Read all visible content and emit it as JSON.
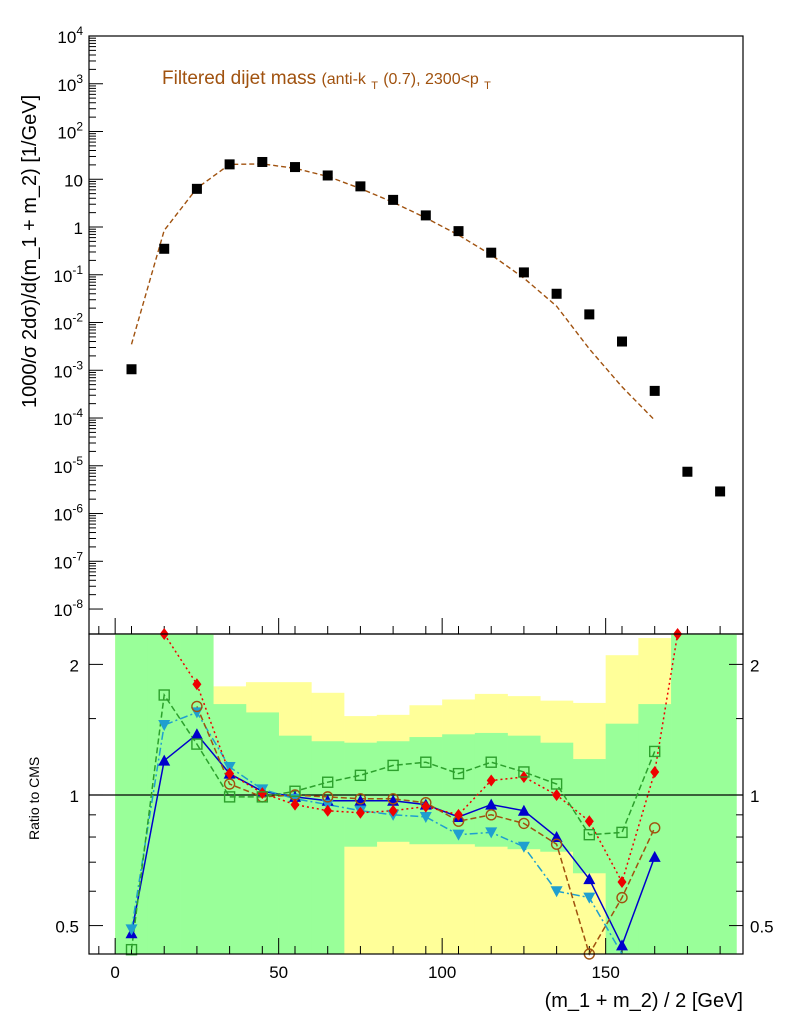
{
  "figure": {
    "title_main": "Filtered dijet mass",
    "title_detail_prefix": "(anti-k",
    "title_detail_sub": "T",
    "title_detail_mid": "(0.7), 2300<p",
    "title_detail_sub2": "T",
    "title_color": "#a0520f"
  },
  "chart_data": [
    {
      "type": "scatter",
      "panel": "top",
      "ylabel": "1000/σ 2dσ)/d(m_1 + m_2) [1/GeV]",
      "yscale": "log",
      "ylim": [
        3e-09,
        10000
      ],
      "xlim": [
        -8,
        192
      ],
      "y_tick_exponents": [
        4,
        3,
        2,
        1,
        0,
        -1,
        -2,
        -3,
        -4,
        -5,
        -6,
        -7,
        -8
      ],
      "y_tick_labels": [
        "10^4",
        "10^3",
        "10^2",
        "10",
        "1",
        "10^-1",
        "10^-2",
        "10^-3",
        "10^-4",
        "10^-5",
        "10^-6",
        "10^-7",
        "10^-8"
      ],
      "series": [
        {
          "style": "markers",
          "color": "#000000",
          "x": [
            5,
            15,
            25,
            35,
            45,
            55,
            65,
            75,
            85,
            95,
            105,
            115,
            125,
            135,
            145,
            155,
            165,
            175,
            185
          ],
          "y": [
            0.00105,
            0.35,
            6.3,
            20.5,
            23,
            18,
            12,
            7.1,
            3.7,
            1.75,
            0.82,
            0.29,
            0.112,
            0.04,
            0.0148,
            0.004,
            0.00037,
            7.5e-06,
            2.9e-06
          ]
        },
        {
          "style": "dashed-line",
          "color": "#a0520f",
          "x": [
            5,
            15,
            25,
            35,
            45,
            55,
            65,
            75,
            85,
            95,
            105,
            115,
            125,
            135,
            145,
            155,
            165
          ],
          "y": [
            0.0035,
            0.85,
            6.5,
            20.5,
            21,
            17,
            11.5,
            6.4,
            3.3,
            1.55,
            0.68,
            0.26,
            0.085,
            0.022,
            0.0028,
            0.00045,
            9e-05
          ]
        }
      ]
    },
    {
      "type": "scatter",
      "panel": "ratio",
      "xlabel": "(m_1 + m_2) / 2 [GeV]",
      "ylabel": "Ratio to CMS",
      "yscale": "log",
      "ylim": [
        0.43,
        2.35
      ],
      "xlim": [
        -8,
        192
      ],
      "x_ticks": [
        0,
        50,
        100,
        150
      ],
      "y_ticks": [
        0.5,
        1,
        2
      ],
      "y_tick_labels": [
        "0.5",
        "1",
        "2"
      ],
      "reference_line": 1,
      "bands": {
        "bins": [
          0,
          10,
          20,
          30,
          40,
          50,
          60,
          70,
          80,
          90,
          100,
          110,
          120,
          130,
          140,
          150,
          160,
          170,
          190
        ],
        "yellow": {
          "color": "#ffff99",
          "lo": [
            0.43,
            0.43,
            0.68,
            0.43,
            0.45,
            0.55,
            0.43,
            0.43,
            0.43,
            0.43,
            0.43,
            0.43,
            0.43,
            0.43,
            0.43,
            0.43,
            0.43,
            2.35
          ],
          "hi": [
            2.35,
            2.35,
            2.35,
            1.78,
            1.82,
            1.82,
            1.72,
            1.52,
            1.53,
            1.61,
            1.66,
            1.71,
            1.69,
            1.65,
            1.63,
            2.1,
            2.3,
            2.35
          ]
        },
        "green": {
          "color": "#99ff99",
          "lo": [
            0.43,
            0.43,
            0.43,
            0.43,
            0.43,
            0.43,
            0.43,
            0.76,
            0.78,
            0.77,
            0.77,
            0.76,
            0.75,
            0.74,
            0.66,
            0.43,
            0.43,
            0.43
          ],
          "hi": [
            2.35,
            2.35,
            2.35,
            1.62,
            1.55,
            1.37,
            1.33,
            1.32,
            1.33,
            1.36,
            1.38,
            1.39,
            1.37,
            1.32,
            1.21,
            1.46,
            1.62,
            2.35
          ]
        }
      },
      "series": [
        {
          "marker": "triangle-up",
          "line": "solid",
          "color": "#0000cc",
          "x": [
            5,
            15,
            25,
            35,
            45,
            55,
            65,
            75,
            85,
            95,
            105,
            115,
            125,
            135,
            145,
            155,
            165
          ],
          "y": [
            0.48,
            1.2,
            1.38,
            1.12,
            1.02,
            0.99,
            0.97,
            0.97,
            0.97,
            0.95,
            0.89,
            0.95,
            0.92,
            0.8,
            0.64,
            0.45,
            0.72
          ]
        },
        {
          "marker": "triangle-down",
          "line": "dashdot",
          "color": "#1f9fcf",
          "x": [
            5,
            15,
            25,
            35,
            45,
            55,
            65,
            75,
            85,
            95,
            105,
            115,
            125,
            135,
            145,
            155
          ],
          "y": [
            0.49,
            1.45,
            1.55,
            1.16,
            1.03,
            0.98,
            0.95,
            0.92,
            0.9,
            0.89,
            0.81,
            0.82,
            0.76,
            0.6,
            0.58,
            0.42
          ]
        },
        {
          "marker": "circle-open",
          "line": "dashed",
          "color": "#a0520f",
          "x": [
            25,
            35,
            45,
            55,
            65,
            75,
            85,
            95,
            105,
            115,
            125,
            135,
            145,
            155,
            165
          ],
          "y": [
            1.6,
            1.06,
            0.99,
            1.0,
            0.99,
            0.98,
            0.98,
            0.96,
            0.87,
            0.9,
            0.86,
            0.77,
            0.43,
            0.58,
            0.84
          ]
        },
        {
          "marker": "diamond",
          "line": "dotted",
          "color": "#ee0000",
          "x": [
            15,
            25,
            35,
            45,
            55,
            65,
            75,
            85,
            95,
            105,
            115,
            125,
            135,
            145,
            155,
            165,
            172
          ],
          "y": [
            2.35,
            1.8,
            1.12,
            1.01,
            0.95,
            0.92,
            0.91,
            0.92,
            0.94,
            0.9,
            1.08,
            1.1,
            1.0,
            0.87,
            0.63,
            1.13,
            2.35
          ]
        },
        {
          "marker": "square-open",
          "line": "dashed",
          "color": "#2ca02c",
          "x": [
            5,
            15,
            25,
            35,
            45,
            55,
            65,
            75,
            85,
            95,
            105,
            115,
            125,
            135,
            145,
            155,
            165
          ],
          "y": [
            0.44,
            1.7,
            1.31,
            0.99,
            0.99,
            1.02,
            1.07,
            1.11,
            1.17,
            1.19,
            1.12,
            1.19,
            1.13,
            1.06,
            0.81,
            0.82,
            1.26
          ]
        }
      ]
    }
  ]
}
